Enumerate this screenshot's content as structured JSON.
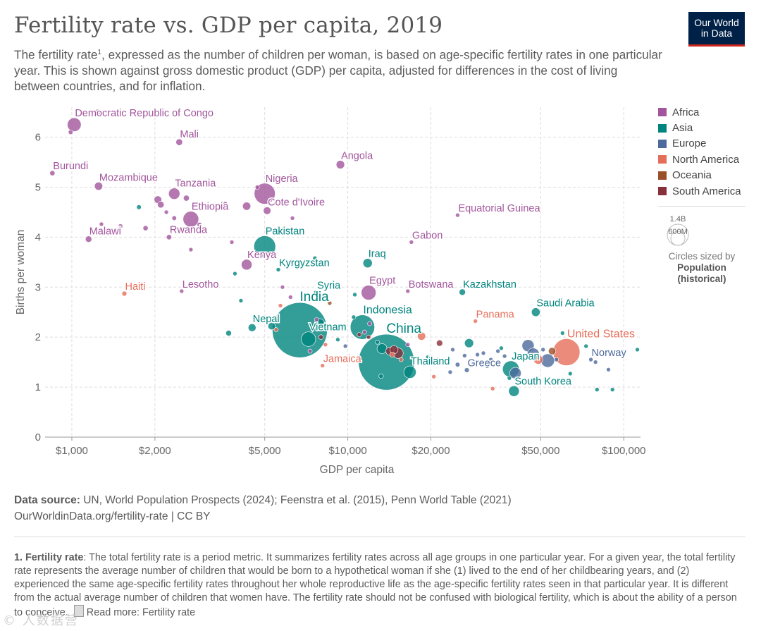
{
  "header": {
    "title": "Fertility rate vs. GDP per capita, 2019",
    "subtitle_pre": "The fertility rate",
    "subtitle_sup": "1",
    "subtitle_post": ", expressed as the number of children per woman, is based on age-specific fertility rates in one particular year. This is shown against gross domestic product (GDP) per capita, adjusted for differences in the cost of living between countries, and for inflation.",
    "logo_line1": "Our World",
    "logo_line2": "in Data"
  },
  "colors": {
    "Africa": "#a2559c",
    "Asia": "#00847e",
    "Europe": "#4c6a9c",
    "North America": "#e56e5a",
    "Oceania": "#9a5129",
    "South America": "#883039"
  },
  "legend": {
    "regions": [
      "Africa",
      "Asia",
      "Europe",
      "North America",
      "Oceania",
      "South America"
    ],
    "size_big": "1.4B",
    "size_small": "600M",
    "size_caption": "Circles sized by",
    "size_caption2a": "Population",
    "size_caption2b": "(historical)"
  },
  "chart_data": {
    "type": "scatter",
    "title": "Fertility rate vs. GDP per capita, 2019",
    "xlabel": "GDP per capita",
    "ylabel": "Births per woman",
    "xscale": "log",
    "xlim": [
      800,
      115000
    ],
    "ylim": [
      0,
      6.6
    ],
    "xticks": [
      1000,
      2000,
      5000,
      10000,
      20000,
      50000,
      100000
    ],
    "xtick_labels": [
      "$1,000",
      "$2,000",
      "$5,000",
      "$10,000",
      "$20,000",
      "$50,000",
      "$100,000"
    ],
    "yticks": [
      0,
      1,
      2,
      3,
      4,
      5,
      6
    ],
    "ytick_labels": [
      "0",
      "1",
      "2",
      "3",
      "4",
      "5",
      "6"
    ],
    "size_legend_values": [
      1400,
      600
    ],
    "labeled_points": [
      {
        "name": "Democratic Republic of Congo",
        "x": 1020,
        "y": 6.25,
        "pop": 87,
        "region": "Africa"
      },
      {
        "name": "Mali",
        "x": 2450,
        "y": 5.9,
        "pop": 20,
        "region": "Africa"
      },
      {
        "name": "Burundi",
        "x": 850,
        "y": 5.28,
        "pop": 12,
        "region": "Africa"
      },
      {
        "name": "Angola",
        "x": 9400,
        "y": 5.45,
        "pop": 32,
        "region": "Africa"
      },
      {
        "name": "Mozambique",
        "x": 1250,
        "y": 5.02,
        "pop": 30,
        "region": "Africa"
      },
      {
        "name": "Tanzania",
        "x": 2350,
        "y": 4.87,
        "pop": 58,
        "region": "Africa"
      },
      {
        "name": "Nigeria",
        "x": 5000,
        "y": 4.87,
        "pop": 200,
        "region": "Africa"
      },
      {
        "name": "Ethiopia",
        "x": 2700,
        "y": 4.36,
        "pop": 112,
        "region": "Africa"
      },
      {
        "name": "Cote d'Ivoire",
        "x": 5100,
        "y": 4.53,
        "pop": 26,
        "region": "Africa"
      },
      {
        "name": "Equatorial Guinea",
        "x": 25000,
        "y": 4.44,
        "pop": 1.4,
        "region": "Africa"
      },
      {
        "name": "Malawi",
        "x": 1150,
        "y": 3.96,
        "pop": 18.6,
        "region": "Africa"
      },
      {
        "name": "Rwanda",
        "x": 2250,
        "y": 4.0,
        "pop": 12.6,
        "region": "Africa"
      },
      {
        "name": "Pakistan",
        "x": 5000,
        "y": 3.81,
        "pop": 216,
        "region": "Asia"
      },
      {
        "name": "Gabon",
        "x": 17000,
        "y": 3.9,
        "pop": 2.2,
        "region": "Africa"
      },
      {
        "name": "Kenya",
        "x": 4300,
        "y": 3.45,
        "pop": 52,
        "region": "Africa"
      },
      {
        "name": "Kyrgyzstan",
        "x": 5600,
        "y": 3.35,
        "pop": 6.4,
        "region": "Asia"
      },
      {
        "name": "Iraq",
        "x": 11800,
        "y": 3.48,
        "pop": 39,
        "region": "Asia"
      },
      {
        "name": "Haiti",
        "x": 1550,
        "y": 2.87,
        "pop": 11,
        "region": "North America"
      },
      {
        "name": "Lesotho",
        "x": 2500,
        "y": 2.92,
        "pop": 2.1,
        "region": "Africa"
      },
      {
        "name": "Syria",
        "x": 7700,
        "y": 2.88,
        "pop": 17,
        "region": "Asia"
      },
      {
        "name": "Egypt",
        "x": 11900,
        "y": 2.89,
        "pop": 100,
        "region": "Africa"
      },
      {
        "name": "Botswana",
        "x": 16500,
        "y": 2.92,
        "pop": 2.3,
        "region": "Africa"
      },
      {
        "name": "Kazakhstan",
        "x": 26000,
        "y": 2.9,
        "pop": 18.5,
        "region": "Asia"
      },
      {
        "name": "India",
        "x": 6700,
        "y": 2.14,
        "pop": 1380,
        "region": "Asia"
      },
      {
        "name": "Indonesia",
        "x": 11300,
        "y": 2.2,
        "pop": 270,
        "region": "Asia"
      },
      {
        "name": "Panama",
        "x": 29000,
        "y": 2.32,
        "pop": 4.2,
        "region": "North America"
      },
      {
        "name": "Saudi Arabia",
        "x": 48000,
        "y": 2.5,
        "pop": 34,
        "region": "Asia"
      },
      {
        "name": "Nepal",
        "x": 4500,
        "y": 2.19,
        "pop": 28,
        "region": "Asia"
      },
      {
        "name": "Vietnam",
        "x": 7200,
        "y": 1.96,
        "pop": 96,
        "region": "Asia"
      },
      {
        "name": "China",
        "x": 13800,
        "y": 1.5,
        "pop": 1420,
        "region": "Asia"
      },
      {
        "name": "United States",
        "x": 62000,
        "y": 1.7,
        "pop": 330,
        "region": "North America"
      },
      {
        "name": "Jamaica",
        "x": 8100,
        "y": 1.43,
        "pop": 2.9,
        "region": "North America"
      },
      {
        "name": "Thailand",
        "x": 16800,
        "y": 1.3,
        "pop": 70,
        "region": "Asia"
      },
      {
        "name": "Greece",
        "x": 27000,
        "y": 1.34,
        "pop": 10.7,
        "region": "Europe"
      },
      {
        "name": "Japan",
        "x": 39000,
        "y": 1.36,
        "pop": 126,
        "region": "Asia"
      },
      {
        "name": "Norway",
        "x": 76000,
        "y": 1.55,
        "pop": 5.3,
        "region": "Europe"
      },
      {
        "name": "South Korea",
        "x": 40000,
        "y": 0.92,
        "pop": 51,
        "region": "Asia"
      }
    ],
    "other_points": [
      {
        "x": 1240,
        "y": 6.5,
        "pop": 16,
        "region": "Africa"
      },
      {
        "x": 990,
        "y": 6.1,
        "pop": 10,
        "region": "Africa"
      },
      {
        "x": 2100,
        "y": 4.65,
        "pop": 20,
        "region": "Africa"
      },
      {
        "x": 2600,
        "y": 4.78,
        "pop": 16,
        "region": "Africa"
      },
      {
        "x": 1280,
        "y": 4.26,
        "pop": 8,
        "region": "Africa"
      },
      {
        "x": 1500,
        "y": 4.22,
        "pop": 10,
        "region": "Africa"
      },
      {
        "x": 1850,
        "y": 4.18,
        "pop": 12,
        "region": "Africa"
      },
      {
        "x": 2050,
        "y": 4.75,
        "pop": 26,
        "region": "Africa"
      },
      {
        "x": 2350,
        "y": 4.38,
        "pop": 10,
        "region": "Africa"
      },
      {
        "x": 2200,
        "y": 4.5,
        "pop": 8,
        "region": "Africa"
      },
      {
        "x": 2900,
        "y": 4.25,
        "pop": 10,
        "region": "Africa"
      },
      {
        "x": 2950,
        "y": 4.12,
        "pop": 12,
        "region": "Africa"
      },
      {
        "x": 3600,
        "y": 4.67,
        "pop": 6,
        "region": "Africa"
      },
      {
        "x": 4300,
        "y": 4.62,
        "pop": 30,
        "region": "Africa"
      },
      {
        "x": 4700,
        "y": 5.0,
        "pop": 8,
        "region": "Africa"
      },
      {
        "x": 2700,
        "y": 3.75,
        "pop": 8,
        "region": "Africa"
      },
      {
        "x": 3800,
        "y": 3.9,
        "pop": 6,
        "region": "Africa"
      },
      {
        "x": 1750,
        "y": 4.6,
        "pop": 10,
        "region": "Asia"
      },
      {
        "x": 3900,
        "y": 3.27,
        "pop": 7,
        "region": "Asia"
      },
      {
        "x": 6300,
        "y": 4.38,
        "pop": 6,
        "region": "Africa"
      },
      {
        "x": 7600,
        "y": 3.58,
        "pop": 6,
        "region": "Asia"
      },
      {
        "x": 10600,
        "y": 2.85,
        "pop": 6,
        "region": "Asia"
      },
      {
        "x": 4100,
        "y": 2.73,
        "pop": 6,
        "region": "Asia"
      },
      {
        "x": 5700,
        "y": 2.63,
        "pop": 5,
        "region": "North America"
      },
      {
        "x": 3700,
        "y": 2.08,
        "pop": 15,
        "region": "Asia"
      },
      {
        "x": 5300,
        "y": 2.22,
        "pop": 25,
        "region": "Asia"
      },
      {
        "x": 5500,
        "y": 2.15,
        "pop": 6,
        "region": "North America"
      },
      {
        "x": 4800,
        "y": 2.33,
        "pop": 6,
        "region": "North America"
      },
      {
        "x": 7900,
        "y": 2.27,
        "pop": 46,
        "region": "Asia"
      },
      {
        "x": 8000,
        "y": 2.0,
        "pop": 10,
        "region": "South America"
      },
      {
        "x": 8300,
        "y": 1.85,
        "pop": 6,
        "region": "North America"
      },
      {
        "x": 7300,
        "y": 1.72,
        "pop": 6,
        "region": "Africa"
      },
      {
        "x": 7700,
        "y": 2.35,
        "pop": 6,
        "region": "Africa"
      },
      {
        "x": 8600,
        "y": 2.68,
        "pop": 4,
        "region": "Oceania"
      },
      {
        "x": 6200,
        "y": 2.8,
        "pop": 6,
        "region": "Africa"
      },
      {
        "x": 9800,
        "y": 1.82,
        "pop": 6,
        "region": "Europe"
      },
      {
        "x": 11500,
        "y": 2.1,
        "pop": 8,
        "region": "Africa"
      },
      {
        "x": 12000,
        "y": 2.27,
        "pop": 8,
        "region": "Africa"
      },
      {
        "x": 12400,
        "y": 2.55,
        "pop": 6,
        "region": "Asia"
      },
      {
        "x": 11000,
        "y": 2.05,
        "pop": 6,
        "region": "South America"
      },
      {
        "x": 11900,
        "y": 2.0,
        "pop": 6,
        "region": "South America"
      },
      {
        "x": 13300,
        "y": 1.77,
        "pop": 45,
        "region": "Asia"
      },
      {
        "x": 12800,
        "y": 1.9,
        "pop": 6,
        "region": "Asia"
      },
      {
        "x": 14200,
        "y": 1.72,
        "pop": 30,
        "region": "South America"
      },
      {
        "x": 15200,
        "y": 1.68,
        "pop": 50,
        "region": "South America"
      },
      {
        "x": 14700,
        "y": 1.75,
        "pop": 30,
        "region": "South America"
      },
      {
        "x": 15600,
        "y": 1.55,
        "pop": 8,
        "region": "North America"
      },
      {
        "x": 14500,
        "y": 1.65,
        "pop": 12,
        "region": "North America"
      },
      {
        "x": 13200,
        "y": 1.22,
        "pop": 10,
        "region": "Asia"
      },
      {
        "x": 18500,
        "y": 2.02,
        "pop": 30,
        "region": "North America"
      },
      {
        "x": 21500,
        "y": 1.88,
        "pop": 18,
        "region": "South America"
      },
      {
        "x": 21000,
        "y": 1.55,
        "pop": 6,
        "region": "Asia"
      },
      {
        "x": 20500,
        "y": 1.21,
        "pop": 6,
        "region": "North America"
      },
      {
        "x": 24000,
        "y": 1.75,
        "pop": 8,
        "region": "Europe"
      },
      {
        "x": 25000,
        "y": 1.45,
        "pop": 10,
        "region": "Europe"
      },
      {
        "x": 26500,
        "y": 1.63,
        "pop": 8,
        "region": "Europe"
      },
      {
        "x": 27500,
        "y": 1.88,
        "pop": 37,
        "region": "Asia"
      },
      {
        "x": 31000,
        "y": 1.68,
        "pop": 8,
        "region": "Europe"
      },
      {
        "x": 33000,
        "y": 1.55,
        "pop": 6,
        "region": "Europe"
      },
      {
        "x": 35000,
        "y": 1.72,
        "pop": 6,
        "region": "Europe"
      },
      {
        "x": 36000,
        "y": 1.78,
        "pop": 6,
        "region": "Asia"
      },
      {
        "x": 38500,
        "y": 1.18,
        "pop": 8,
        "region": "Asia"
      },
      {
        "x": 40500,
        "y": 1.28,
        "pop": 60,
        "region": "Europe"
      },
      {
        "x": 42000,
        "y": 1.6,
        "pop": 8,
        "region": "Europe"
      },
      {
        "x": 45000,
        "y": 1.83,
        "pop": 67,
        "region": "Europe"
      },
      {
        "x": 47000,
        "y": 1.66,
        "pop": 67,
        "region": "Europe"
      },
      {
        "x": 49000,
        "y": 1.55,
        "pop": 38,
        "region": "North America"
      },
      {
        "x": 51000,
        "y": 1.75,
        "pop": 8,
        "region": "Europe"
      },
      {
        "x": 53000,
        "y": 1.53,
        "pop": 83,
        "region": "Europe"
      },
      {
        "x": 55000,
        "y": 1.72,
        "pop": 25,
        "region": "Oceania"
      },
      {
        "x": 57000,
        "y": 1.55,
        "pop": 8,
        "region": "Europe"
      },
      {
        "x": 60000,
        "y": 2.08,
        "pop": 6,
        "region": "Asia"
      },
      {
        "x": 64000,
        "y": 1.27,
        "pop": 6,
        "region": "Asia"
      },
      {
        "x": 73000,
        "y": 1.82,
        "pop": 6,
        "region": "Asia"
      },
      {
        "x": 79000,
        "y": 1.5,
        "pop": 6,
        "region": "Europe"
      },
      {
        "x": 88000,
        "y": 1.35,
        "pop": 6,
        "region": "Europe"
      },
      {
        "x": 91000,
        "y": 0.95,
        "pop": 6,
        "region": "Asia"
      },
      {
        "x": 80000,
        "y": 0.95,
        "pop": 6,
        "region": "Asia"
      },
      {
        "x": 112000,
        "y": 1.75,
        "pop": 6,
        "region": "Asia"
      },
      {
        "x": 33500,
        "y": 0.97,
        "pop": 6,
        "region": "North America"
      },
      {
        "x": 37000,
        "y": 1.62,
        "pop": 6,
        "region": "Europe"
      },
      {
        "x": 29500,
        "y": 1.65,
        "pop": 6,
        "region": "Europe"
      },
      {
        "x": 32000,
        "y": 1.42,
        "pop": 8,
        "region": "Europe"
      },
      {
        "x": 18800,
        "y": 1.47,
        "pop": 6,
        "region": "Europe"
      },
      {
        "x": 16500,
        "y": 1.85,
        "pop": 6,
        "region": "Africa"
      },
      {
        "x": 19500,
        "y": 1.6,
        "pop": 6,
        "region": "Asia"
      },
      {
        "x": 9200,
        "y": 1.95,
        "pop": 6,
        "region": "Asia"
      },
      {
        "x": 10500,
        "y": 2.4,
        "pop": 6,
        "region": "Asia"
      },
      {
        "x": 5800,
        "y": 3.0,
        "pop": 4,
        "region": "Africa"
      },
      {
        "x": 9700,
        "y": 2.22,
        "pop": 8,
        "region": "Asia"
      },
      {
        "x": 23500,
        "y": 1.3,
        "pop": 6,
        "region": "Europe"
      }
    ]
  },
  "source": {
    "label": "Data source:",
    "text": "UN, World Population Prospects (2024); Feenstra et al. (2015), Penn World Table (2021)",
    "link": "OurWorldinData.org/fertility-rate | CC BY"
  },
  "footnote": {
    "label": "1. Fertility rate",
    "text": ": The total fertility rate is a period metric. It summarizes fertility rates across all age groups in one particular year. For a given year, the total fertility rate represents the average number of children that would be born to a hypothetical woman if she (1) lived to the end of her childbearing years, and (2) experienced the same age-specific fertility rates throughout her whole reproductive life as the age-specific fertility rates seen in that particular year. It is different from the actual average number of children that women have. The fertility rate should not be confused with biological fertility, which is about the ability of a person to conceive.",
    "read_more": "Read more: Fertility rate"
  },
  "watermark": "© 人数据营"
}
